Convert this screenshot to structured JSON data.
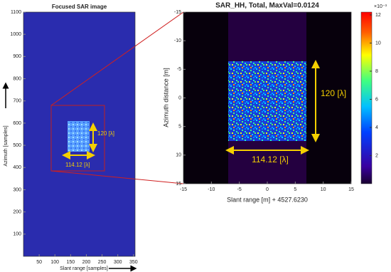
{
  "chart_data": [
    {
      "type": "image",
      "title": "Focused SAR image",
      "x_label": "Slant range [samples]",
      "y_label": "Azimuth [samples]",
      "xlim": [
        0,
        355
      ],
      "xticks": [
        50,
        100,
        150,
        200,
        250,
        300,
        350
      ],
      "ylim": [
        0,
        1100
      ],
      "yticks": [
        100,
        200,
        300,
        400,
        500,
        600,
        700,
        800,
        900,
        1000,
        1100
      ],
      "annotations": [
        "120 [λ]",
        "114.12 [λ]"
      ]
    },
    {
      "type": "image",
      "title": "SAR_HH, Total, MaxVal=0.0124",
      "x_label": "Slant range [m] + 4527.6230",
      "y_label": "Azimuth distance [m]",
      "xlim": [
        -15,
        15
      ],
      "xticks": [
        -15,
        -10,
        -5,
        0,
        5,
        10,
        15
      ],
      "ylim": [
        15,
        -15
      ],
      "yticks": [
        -15,
        -10,
        -5,
        0,
        5,
        10,
        15
      ],
      "colorbar": {
        "lim": [
          0,
          12.2
        ],
        "ticks": [
          2,
          4,
          6,
          8,
          10,
          12
        ],
        "exponent": "×10⁻³"
      },
      "annotations": [
        "120 [λ]",
        "114.12 [λ]"
      ]
    }
  ]
}
